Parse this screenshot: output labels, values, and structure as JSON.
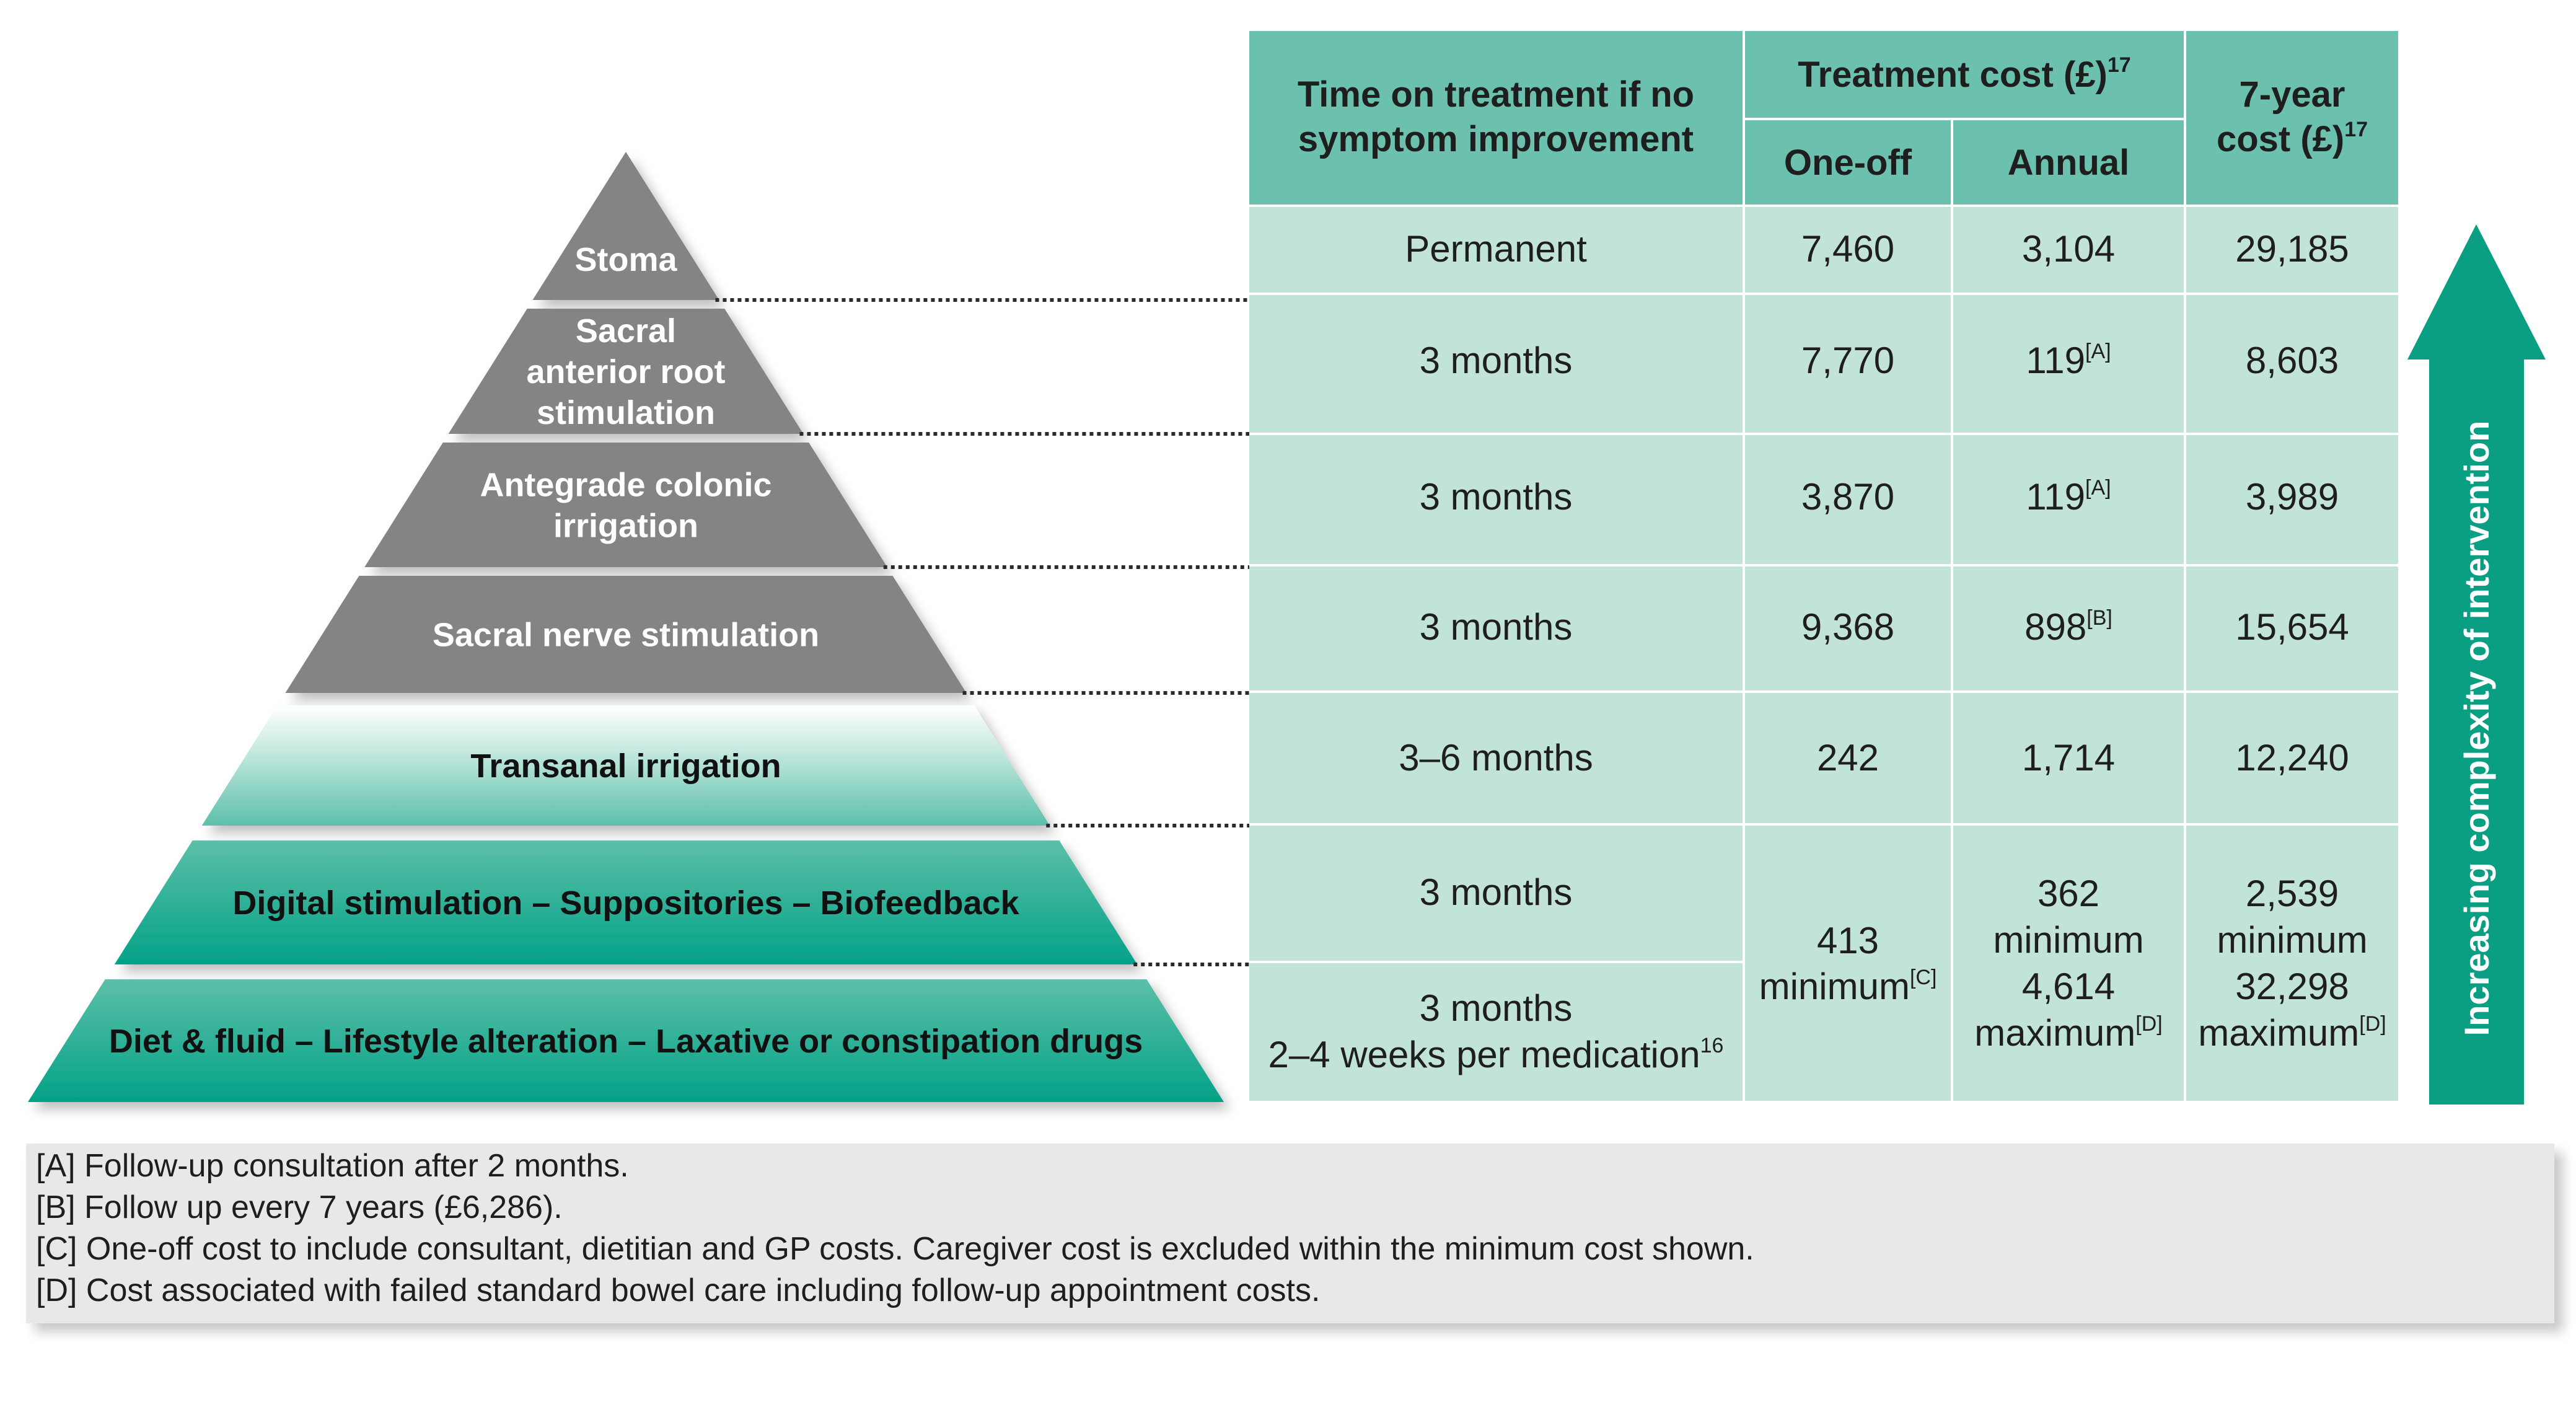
{
  "pyramid": {
    "levels": [
      {
        "label": [
          "Stoma"
        ],
        "fill": "grey"
      },
      {
        "label": [
          "Sacral",
          "anterior root",
          "stimulation"
        ],
        "fill": "grey"
      },
      {
        "label": [
          "Antegrade colonic",
          "irrigation"
        ],
        "fill": "grey"
      },
      {
        "label": [
          "Sacral nerve stimulation"
        ],
        "fill": "grey"
      },
      {
        "label": [
          "Transanal irrigation"
        ],
        "fill": "light-teal-gradient"
      },
      {
        "label": [
          "Digital stimulation – Suppositories – Biofeedback"
        ],
        "fill": "teal-gradient"
      },
      {
        "label": [
          "Diet & fluid – Lifestyle alteration – Laxative or constipation drugs"
        ],
        "fill": "teal-gradient"
      }
    ]
  },
  "table": {
    "header": {
      "time": [
        "Time on treatment if no",
        "symptom improvement"
      ],
      "treatment_cost": "Treatment cost (£)",
      "treatment_cost_ref": "17",
      "one_off": "One-off",
      "annual": "Annual",
      "seven_year": "7-year",
      "seven_year_line2": "cost (£)",
      "seven_year_ref": "17"
    },
    "rows": [
      {
        "time": [
          "Permanent"
        ],
        "one_off": "7,460",
        "annual": "3,104",
        "annual_ref": "",
        "seven_year": "29,185"
      },
      {
        "time": [
          "3 months"
        ],
        "one_off": "7,770",
        "annual": "119",
        "annual_ref": "[A]",
        "seven_year": "8,603"
      },
      {
        "time": [
          "3 months"
        ],
        "one_off": "3,870",
        "annual": "119",
        "annual_ref": "[A]",
        "seven_year": "3,989"
      },
      {
        "time": [
          "3 months"
        ],
        "one_off": "9,368",
        "annual": "898",
        "annual_ref": "[B]",
        "seven_year": "15,654"
      },
      {
        "time": [
          "3–6 months"
        ],
        "one_off": "242",
        "annual": "1,714",
        "annual_ref": "",
        "seven_year": "12,240"
      }
    ],
    "merged": {
      "time_a": "3 months",
      "time_b_line1": "3 months",
      "time_b_line2": "2–4 weeks per medication",
      "time_b_ref": "16",
      "one_off_value": "413",
      "one_off_qualifier": "minimum",
      "one_off_ref": "[C]",
      "annual_min_value": "362",
      "annual_min_qualifier": "minimum",
      "annual_max_value": "4,614",
      "annual_max_qualifier": "maximum",
      "annual_ref": "[D]",
      "seven_min_value": "2,539",
      "seven_min_qualifier": "minimum",
      "seven_max_value": "32,298",
      "seven_max_qualifier": "maximum",
      "seven_ref": "[D]"
    }
  },
  "arrow": {
    "label": "Increasing complexity of intervention",
    "icon": "up-arrow-icon"
  },
  "footnotes": [
    "[A] Follow-up consultation after 2 months.",
    "[B] Follow up every 7 years (£6,286).",
    "[C] One-off cost to include consultant, dietitian and GP costs. Caregiver cost is excluded within the minimum cost shown.",
    "[D] Cost associated with failed standard bowel care including follow-up appointment costs."
  ],
  "colors": {
    "header_teal": "#6cc0ae",
    "cell_mint": "#c2e3da",
    "pyramid_grey": "#848484",
    "pyramid_teal": "#07a38a",
    "arrow_teal": "#0a9e83",
    "footnote_bg": "#e8e8e8",
    "text_dark": "#1e1e1e"
  }
}
